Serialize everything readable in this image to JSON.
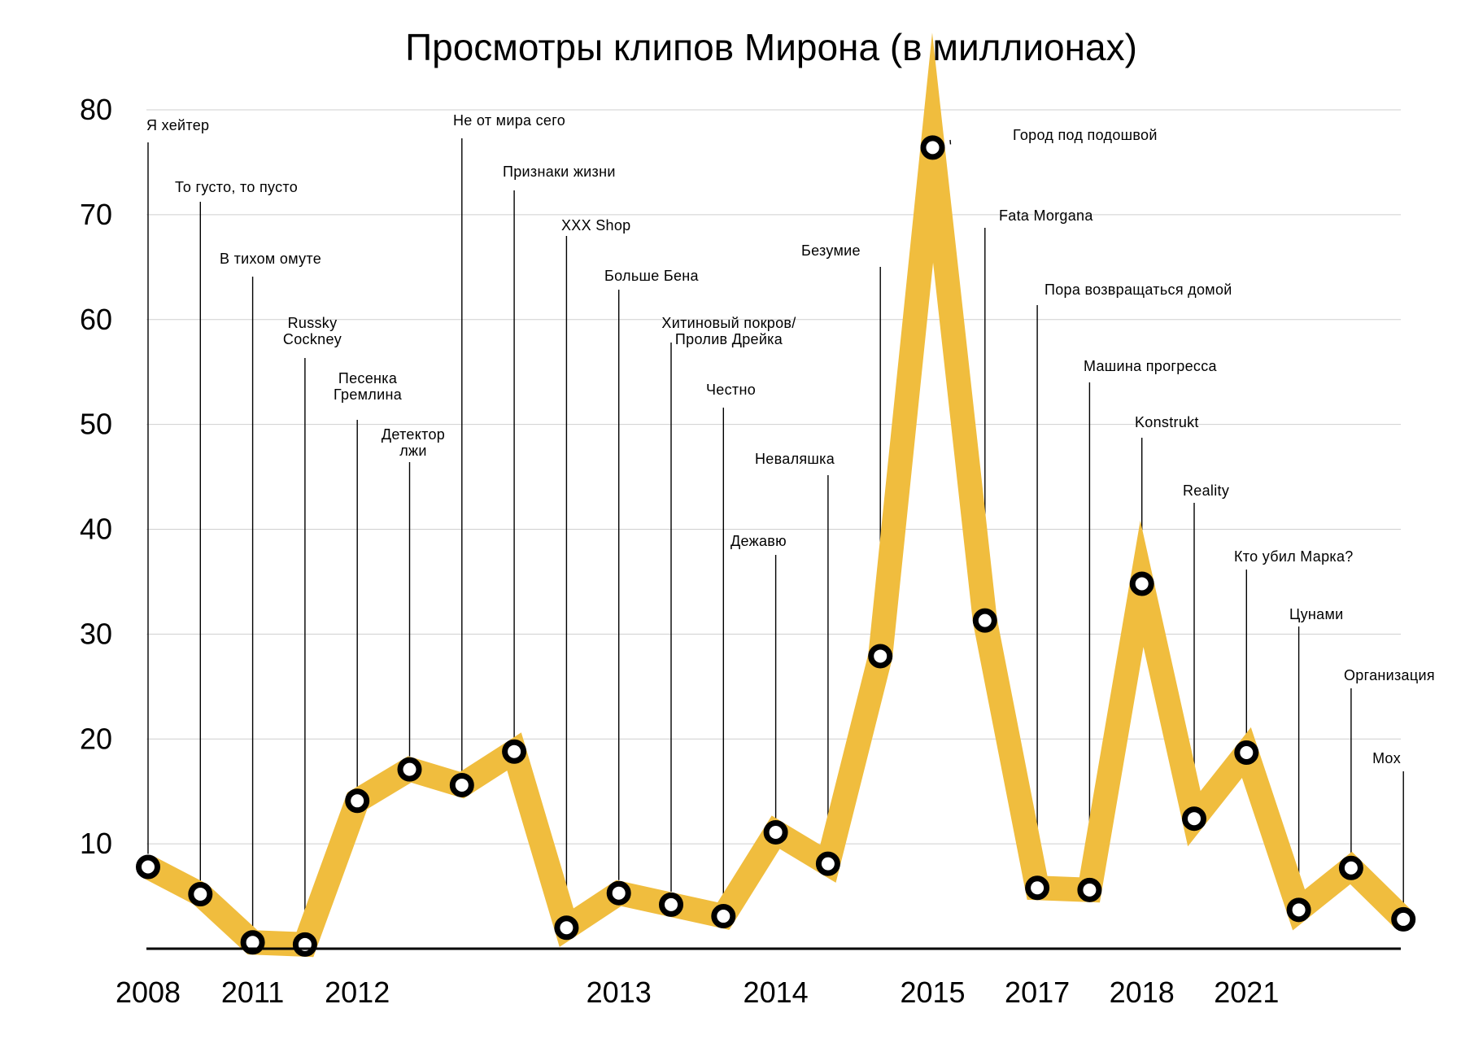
{
  "chart_data": {
    "type": "line",
    "title": "Просмотры клипов Мирона (в миллионах)",
    "xlabel": "",
    "ylabel": "",
    "ylim": [
      0,
      80
    ],
    "yticks": [
      "10",
      "20",
      "30",
      "40",
      "50",
      "60",
      "70",
      "80"
    ],
    "grid": true,
    "line_color": "#f0bd3e",
    "x_tick_labels": [
      {
        "label": "2008",
        "at_point": 0
      },
      {
        "label": "2011",
        "at_point": 2
      },
      {
        "label": "2012",
        "at_point": 4
      },
      {
        "label": "2013",
        "at_point": 9
      },
      {
        "label": "2014",
        "at_point": 12
      },
      {
        "label": "2015",
        "at_point": 15
      },
      {
        "label": "2017",
        "at_point": 17
      },
      {
        "label": "2018",
        "at_point": 19
      },
      {
        "label": "2021",
        "at_point": 21
      }
    ],
    "points": [
      {
        "name": "Я хейтер",
        "value": 7.8
      },
      {
        "name": "То густо, то пусто",
        "value": 5.2
      },
      {
        "name": "В тихом омуте",
        "value": 0.6
      },
      {
        "name": "Russky Cockney",
        "value": 0.4
      },
      {
        "name": "Песенка Гремлина",
        "value": 14.1
      },
      {
        "name": "Детектор лжи",
        "value": 17.1
      },
      {
        "name": "Не от мира сего",
        "value": 15.6
      },
      {
        "name": "Признаки жизни",
        "value": 18.8
      },
      {
        "name": "XXX Shop",
        "value": 2.0
      },
      {
        "name": "Больше Бена",
        "value": 5.3
      },
      {
        "name": "Хитиновый покров/ Пролив Дрейка",
        "value": 4.2
      },
      {
        "name": "Честно",
        "value": 3.1
      },
      {
        "name": "Дежавю",
        "value": 11.1
      },
      {
        "name": "Неваляшка",
        "value": 8.1
      },
      {
        "name": "Безумие",
        "value": 27.9
      },
      {
        "name": "Город под подошвой",
        "value": 76.4
      },
      {
        "name": "Fata Morgana",
        "value": 31.3
      },
      {
        "name": "Пора возвращаться домой",
        "value": 5.8
      },
      {
        "name": "Машина прогресса",
        "value": 5.6
      },
      {
        "name": "Konstrukt",
        "value": 34.8
      },
      {
        "name": "Reality",
        "value": 12.4
      },
      {
        "name": "Кто убил Марка?",
        "value": 18.7
      },
      {
        "name": "Цунами",
        "value": 3.7
      },
      {
        "name": "Организация",
        "value": 7.7
      },
      {
        "name": "Mox",
        "value": 2.8
      }
    ]
  }
}
